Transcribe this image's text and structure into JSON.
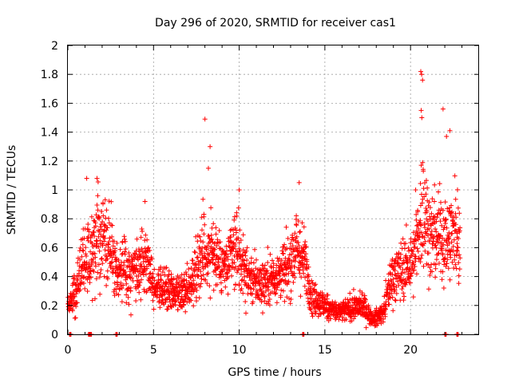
{
  "chart_data": {
    "type": "scatter",
    "title": "Day 296 of 2020, SRMTID for receiver cas1",
    "xlabel": "GPS time / hours",
    "ylabel": "SRMTID / TECUs",
    "xlim": [
      0,
      24
    ],
    "ylim": [
      0,
      2
    ],
    "x_ticks": [
      0,
      5,
      10,
      15,
      20
    ],
    "y_ticks": [
      0,
      0.2,
      0.4,
      0.6,
      0.8,
      1,
      1.2,
      1.4,
      1.6,
      1.8,
      2
    ],
    "x_tick_labels": [
      "0",
      "5",
      "10",
      "15",
      "20"
    ],
    "y_tick_labels": [
      "0",
      "0.2",
      "0.4",
      "0.6",
      "0.8",
      "1",
      "1.2",
      "1.4",
      "1.6",
      "1.8",
      "2"
    ],
    "grid": true,
    "marker": "+",
    "color": "#ff0000",
    "trend": [
      [
        0.0,
        0.22
      ],
      [
        0.5,
        0.3
      ],
      [
        0.9,
        0.55
      ],
      [
        1.3,
        0.5
      ],
      [
        1.8,
        0.75
      ],
      [
        2.3,
        0.7
      ],
      [
        2.8,
        0.45
      ],
      [
        3.5,
        0.42
      ],
      [
        4.2,
        0.45
      ],
      [
        4.6,
        0.55
      ],
      [
        5.0,
        0.35
      ],
      [
        5.8,
        0.3
      ],
      [
        6.5,
        0.25
      ],
      [
        7.2,
        0.35
      ],
      [
        7.8,
        0.6
      ],
      [
        8.5,
        0.55
      ],
      [
        9.2,
        0.45
      ],
      [
        9.8,
        0.6
      ],
      [
        10.5,
        0.4
      ],
      [
        11.2,
        0.35
      ],
      [
        12.0,
        0.4
      ],
      [
        12.8,
        0.45
      ],
      [
        13.3,
        0.6
      ],
      [
        13.8,
        0.5
      ],
      [
        14.3,
        0.25
      ],
      [
        15.0,
        0.2
      ],
      [
        15.8,
        0.15
      ],
      [
        16.5,
        0.18
      ],
      [
        17.2,
        0.2
      ],
      [
        17.8,
        0.1
      ],
      [
        18.4,
        0.15
      ],
      [
        18.9,
        0.4
      ],
      [
        19.5,
        0.45
      ],
      [
        20.2,
        0.5
      ],
      [
        20.7,
        0.9
      ],
      [
        21.2,
        0.65
      ],
      [
        21.7,
        0.7
      ],
      [
        22.2,
        0.65
      ],
      [
        22.6,
        0.7
      ],
      [
        22.9,
        0.65
      ]
    ],
    "peaks": [
      [
        20.6,
        1.82
      ],
      [
        20.65,
        1.8
      ],
      [
        20.7,
        1.76
      ],
      [
        20.62,
        1.55
      ],
      [
        20.66,
        1.5
      ],
      [
        21.9,
        1.56
      ],
      [
        22.3,
        1.41
      ],
      [
        22.1,
        1.37
      ],
      [
        8.0,
        1.49
      ],
      [
        8.3,
        1.3
      ],
      [
        8.2,
        1.15
      ],
      [
        13.5,
        1.05
      ],
      [
        1.1,
        1.08
      ],
      [
        1.7,
        1.08
      ],
      [
        20.3,
        1.0
      ],
      [
        10.0,
        1.0
      ],
      [
        4.5,
        0.92
      ]
    ],
    "zero_points": [
      0.1,
      1.2,
      1.3,
      2.8,
      13.7,
      22.0,
      22.7
    ],
    "n_points": 2400
  }
}
